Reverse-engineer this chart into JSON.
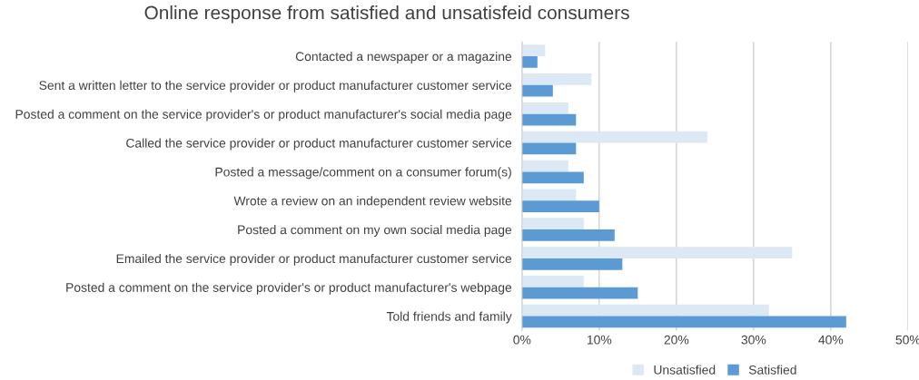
{
  "chart_data": {
    "type": "bar",
    "orientation": "horizontal",
    "title": "Online response from satisfied and unsatisfeid consumers",
    "categories": [
      "Contacted a newspaper or a magazine",
      "Sent a written letter to the service provider or product manufacturer customer service",
      "Posted a comment on the service provider's or product manufacturer's social media page",
      "Called the service provider or product manufacturer customer service",
      "Posted a message/comment on a consumer forum(s)",
      "Wrote a review on an independent review website",
      "Posted a comment on my own social media page",
      "Emailed the service provider or product manufacturer customer service",
      "Posted a comment on the service provider's or product manufacturer's webpage",
      "Told friends and family"
    ],
    "series": [
      {
        "name": "Unsatisfied",
        "color": "#dde8f5",
        "values": [
          3,
          9,
          6,
          24,
          6,
          7,
          8,
          35,
          8,
          32
        ]
      },
      {
        "name": "Satisfied",
        "color": "#5b9bd5",
        "values": [
          2,
          4,
          7,
          7,
          8,
          10,
          12,
          13,
          15,
          42
        ]
      }
    ],
    "xlim": [
      0,
      50
    ],
    "xticks": [
      {
        "value": 0,
        "label": "0%"
      },
      {
        "value": 10,
        "label": "10%"
      },
      {
        "value": 20,
        "label": "20%"
      },
      {
        "value": 30,
        "label": "30%"
      },
      {
        "value": 40,
        "label": "40%"
      },
      {
        "value": 50,
        "label": "50%"
      }
    ],
    "grid": "x",
    "legend": "bottom"
  }
}
